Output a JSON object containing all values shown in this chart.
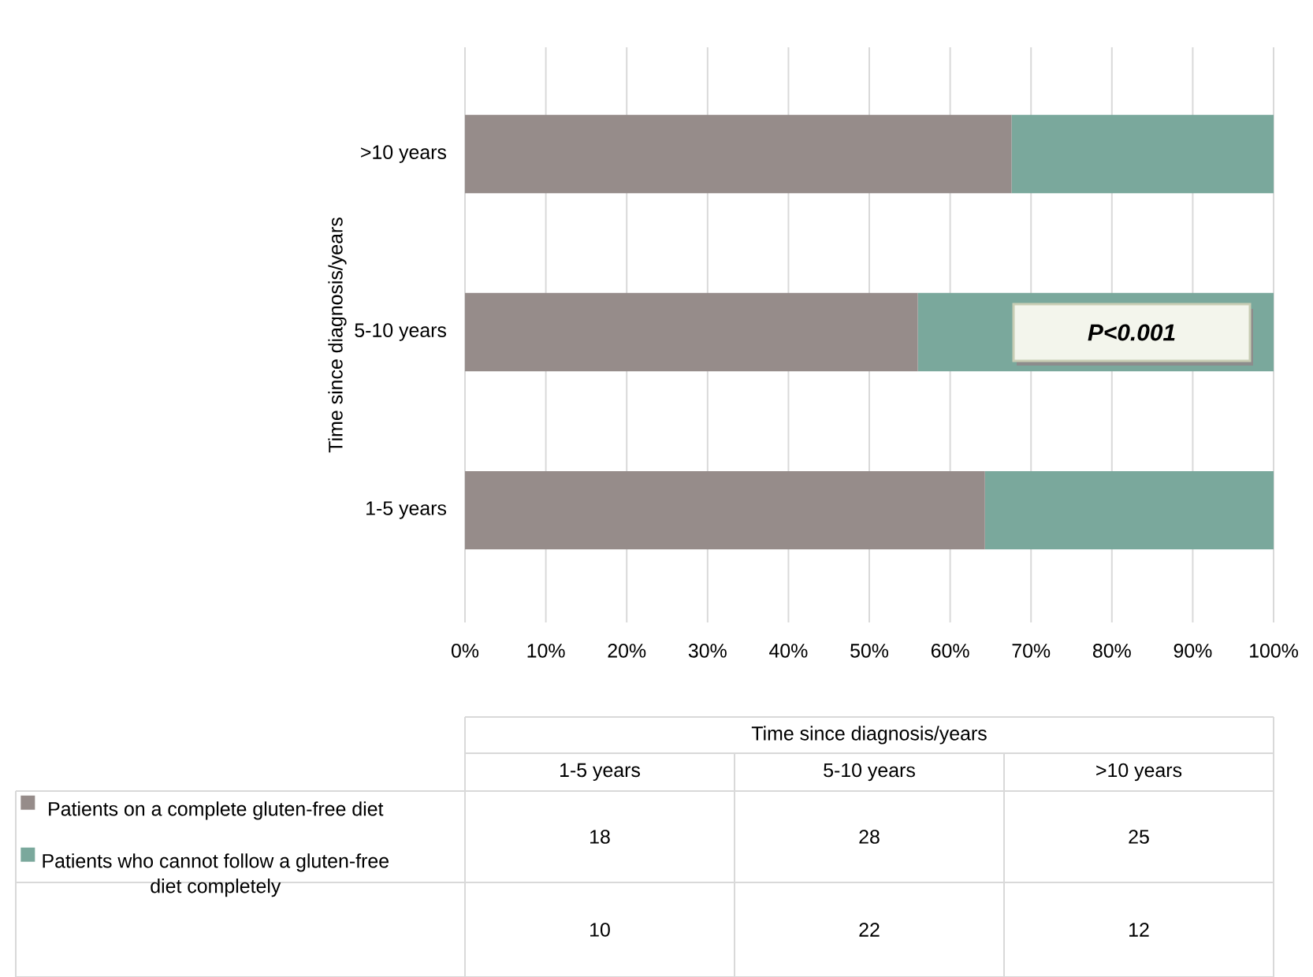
{
  "chart_data": {
    "type": "bar",
    "orientation": "horizontal",
    "stacked": true,
    "ylabel": "Time since diagnosis/years",
    "categories": [
      ">10 years",
      "5-10 years",
      "1-5 years"
    ],
    "series": [
      {
        "name": "Patients on a complete gluten-free diet",
        "color": "#968c8a",
        "values": [
          67.6,
          56,
          64.3
        ]
      },
      {
        "name": "Patients who cannot follow a gluten-free diet completely",
        "color": "#7aa89c",
        "values": [
          32.4,
          44,
          35.7
        ]
      }
    ],
    "xlim": [
      0,
      100
    ],
    "xticks": [
      {
        "value": 0,
        "label": "0%"
      },
      {
        "value": 10,
        "label": "10%"
      },
      {
        "value": 20,
        "label": "20%"
      },
      {
        "value": 30,
        "label": "30%"
      },
      {
        "value": 40,
        "label": "40%"
      },
      {
        "value": 50,
        "label": "50%"
      },
      {
        "value": 60,
        "label": "60%"
      },
      {
        "value": 70,
        "label": "70%"
      },
      {
        "value": 80,
        "label": "80%"
      },
      {
        "value": 90,
        "label": "90%"
      },
      {
        "value": 100,
        "label": "100%"
      }
    ],
    "grid": "x",
    "legend": "bottom",
    "annotations": [
      "P<0.001",
      "Time since diagnosis/years",
      "18",
      "28",
      "25",
      "10",
      "22",
      "12"
    ]
  }
}
